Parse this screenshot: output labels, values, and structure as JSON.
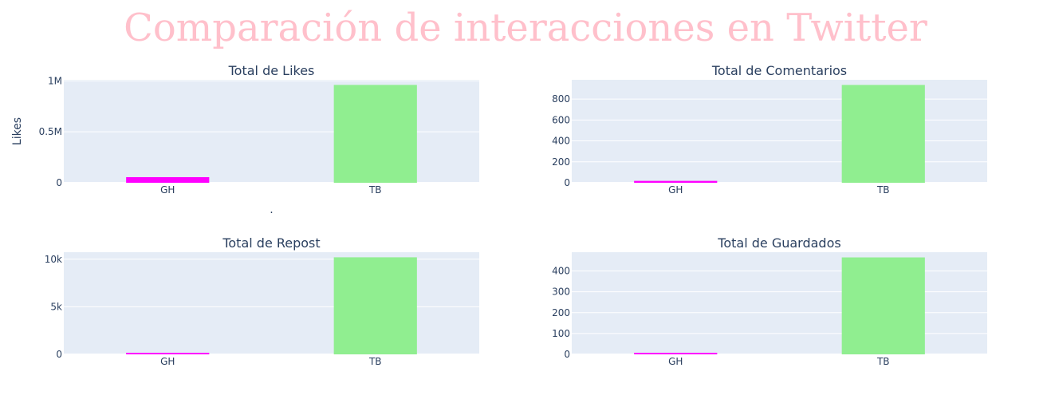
{
  "page": {
    "title": "Comparación de interacciones en Twitter",
    "title_color": "#ffc0cb",
    "background": "#ffffff",
    "plot_background": "#e5ecf6",
    "grid_color": "#ffffff"
  },
  "chart_data": [
    {
      "type": "bar",
      "title": "Total de Likes",
      "xlabel": ".",
      "ylabel": "Likes",
      "categories": [
        "GH",
        "TB"
      ],
      "values": [
        55000,
        960000
      ],
      "colors": [
        "#ff00ff",
        "#90ee90"
      ],
      "ylim": [
        0,
        1010000
      ],
      "yticks": [
        0,
        500000,
        1000000
      ],
      "yticklabels": [
        "0",
        "0.5M",
        "1M"
      ],
      "grid": true
    },
    {
      "type": "bar",
      "title": "Total de Comentarios",
      "xlabel": "",
      "ylabel": "",
      "categories": [
        "GH",
        "TB"
      ],
      "values": [
        18,
        935
      ],
      "colors": [
        "#ff00ff",
        "#90ee90"
      ],
      "ylim": [
        0,
        984
      ],
      "yticks": [
        0,
        200,
        400,
        600,
        800
      ],
      "yticklabels": [
        "0",
        "200",
        "400",
        "600",
        "800"
      ],
      "grid": true
    },
    {
      "type": "bar",
      "title": "Total de Repost",
      "xlabel": "",
      "ylabel": "",
      "categories": [
        "GH",
        "TB"
      ],
      "values": [
        60,
        10200
      ],
      "colors": [
        "#ff00ff",
        "#90ee90"
      ],
      "ylim": [
        0,
        10737
      ],
      "yticks": [
        0,
        5000,
        10000
      ],
      "yticklabels": [
        "0",
        "5k",
        "10k"
      ],
      "grid": true
    },
    {
      "type": "bar",
      "title": "Total de Guardados",
      "xlabel": "",
      "ylabel": "",
      "categories": [
        "GH",
        "TB"
      ],
      "values": [
        3,
        465
      ],
      "colors": [
        "#ff00ff",
        "#90ee90"
      ],
      "ylim": [
        0,
        490
      ],
      "yticks": [
        0,
        100,
        200,
        300,
        400
      ],
      "yticklabels": [
        "0",
        "100",
        "200",
        "300",
        "400"
      ],
      "grid": true
    }
  ]
}
